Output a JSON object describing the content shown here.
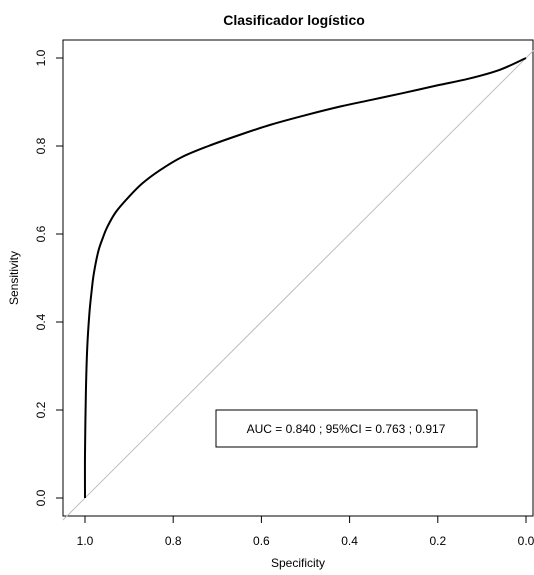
{
  "chart_data": {
    "type": "line",
    "title": "Clasificador logístico",
    "xlabel": "Specificity",
    "ylabel": "Sensitivity",
    "xlim": [
      1.0,
      0.0
    ],
    "ylim": [
      0.0,
      1.0
    ],
    "x_reversed": true,
    "x_ticks": [
      "1.0",
      "0.8",
      "0.6",
      "0.4",
      "0.2",
      "0.0"
    ],
    "y_ticks": [
      "0.0",
      "0.2",
      "0.4",
      "0.6",
      "0.8",
      "1.0"
    ],
    "grid": false,
    "annotation": "AUC = 0.840 ; 95%CI = 0.763 ; 0.917",
    "colors": {
      "roc": "#000000",
      "diagonal": "#bebebe"
    },
    "series": [
      {
        "x": [
          1.0,
          1.0,
          0.998,
          0.995,
          0.99,
          0.985,
          0.98,
          0.97,
          0.96,
          0.95,
          0.93,
          0.9,
          0.87,
          0.83,
          0.78,
          0.72,
          0.65,
          0.58,
          0.5,
          0.42,
          0.35,
          0.28,
          0.2,
          0.13,
          0.06,
          0.0
        ],
        "y": [
          0.0,
          0.1,
          0.24,
          0.34,
          0.42,
          0.47,
          0.51,
          0.56,
          0.59,
          0.615,
          0.65,
          0.685,
          0.715,
          0.745,
          0.775,
          0.8,
          0.825,
          0.848,
          0.87,
          0.89,
          0.905,
          0.92,
          0.938,
          0.953,
          0.973,
          1.0
        ]
      },
      {
        "x": [
          1.0,
          0.0
        ],
        "y": [
          0.0,
          1.0
        ]
      }
    ]
  }
}
